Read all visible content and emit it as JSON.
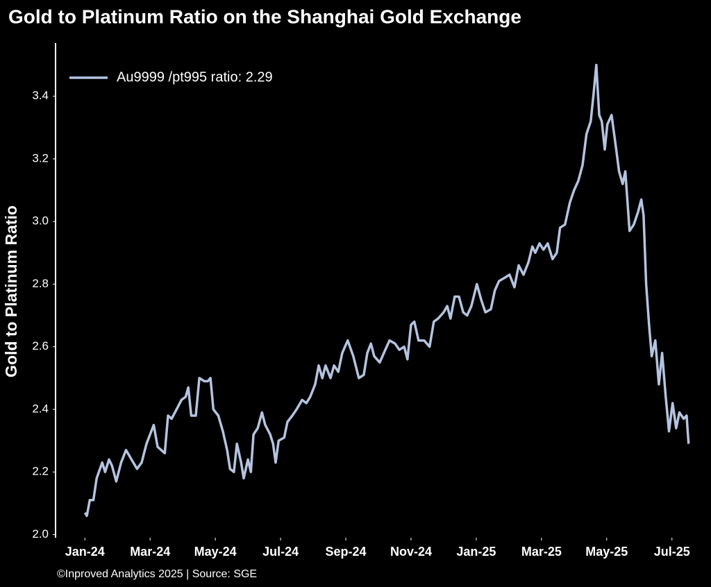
{
  "chart_data": {
    "type": "line",
    "title": "Gold to Platinum Ratio on the Shanghai Gold Exchange",
    "ylabel": "Gold to Platinum Ratio",
    "footer": "©Inproved Analytics 2025 | Source: SGE",
    "x": [
      0,
      0.06,
      0.15,
      0.26,
      0.36,
      0.53,
      0.62,
      0.74,
      0.83,
      0.96,
      1.11,
      1.26,
      1.43,
      1.6,
      1.74,
      1.89,
      2.11,
      2.23,
      2.34,
      2.45,
      2.55,
      2.66,
      2.81,
      2.96,
      3.09,
      3.17,
      3.26,
      3.4,
      3.51,
      3.66,
      3.77,
      3.85,
      3.94,
      4.09,
      4.23,
      4.36,
      4.45,
      4.57,
      4.66,
      4.79,
      4.87,
      5,
      5.09,
      5.17,
      5.3,
      5.43,
      5.53,
      5.68,
      5.77,
      5.85,
      5.94,
      6.11,
      6.21,
      6.36,
      6.49,
      6.66,
      6.79,
      6.91,
      7.06,
      7.17,
      7.28,
      7.38,
      7.53,
      7.64,
      7.77,
      7.89,
      8.06,
      8.23,
      8.4,
      8.55,
      8.66,
      8.77,
      8.87,
      9.04,
      9.21,
      9.34,
      9.51,
      9.64,
      9.79,
      9.89,
      10,
      10.1,
      10.23,
      10.4,
      10.57,
      10.7,
      10.83,
      11,
      11.11,
      11.21,
      11.34,
      11.47,
      11.6,
      11.72,
      11.85,
      12.02,
      12.15,
      12.28,
      12.45,
      12.57,
      12.7,
      12.87,
      13.02,
      13.17,
      13.3,
      13.45,
      13.6,
      13.72,
      13.81,
      13.94,
      14.06,
      14.19,
      14.34,
      14.47,
      14.57,
      14.72,
      14.87,
      15,
      15.13,
      15.26,
      15.38,
      15.51,
      15.6,
      15.68,
      15.77,
      15.85,
      15.94,
      16.02,
      16.15,
      16.28,
      16.38,
      16.49,
      16.57,
      16.7,
      16.83,
      16.96,
      17.06,
      17.13,
      17.21,
      17.3,
      17.38,
      17.49,
      17.6,
      17.7,
      17.81,
      17.91,
      18.02,
      18.13,
      18.23,
      18.36,
      18.45,
      18.51
    ],
    "series": [
      {
        "name": "Au9999 /pt995 ratio: 2.29",
        "color": "#b4c4e0",
        "values": [
          2.07,
          2.06,
          2.11,
          2.11,
          2.18,
          2.23,
          2.2,
          2.24,
          2.22,
          2.17,
          2.23,
          2.27,
          2.24,
          2.21,
          2.23,
          2.29,
          2.35,
          2.28,
          2.27,
          2.26,
          2.38,
          2.37,
          2.4,
          2.43,
          2.44,
          2.47,
          2.38,
          2.38,
          2.5,
          2.49,
          2.49,
          2.5,
          2.4,
          2.38,
          2.33,
          2.27,
          2.21,
          2.2,
          2.29,
          2.23,
          2.18,
          2.24,
          2.2,
          2.32,
          2.34,
          2.39,
          2.35,
          2.32,
          2.29,
          2.23,
          2.3,
          2.31,
          2.36,
          2.38,
          2.4,
          2.43,
          2.42,
          2.44,
          2.48,
          2.54,
          2.5,
          2.54,
          2.5,
          2.54,
          2.52,
          2.58,
          2.62,
          2.57,
          2.5,
          2.51,
          2.58,
          2.61,
          2.57,
          2.55,
          2.59,
          2.62,
          2.61,
          2.59,
          2.6,
          2.56,
          2.67,
          2.68,
          2.62,
          2.62,
          2.6,
          2.68,
          2.69,
          2.71,
          2.73,
          2.69,
          2.76,
          2.76,
          2.71,
          2.7,
          2.73,
          2.8,
          2.75,
          2.71,
          2.72,
          2.78,
          2.81,
          2.82,
          2.83,
          2.79,
          2.86,
          2.83,
          2.87,
          2.92,
          2.9,
          2.93,
          2.91,
          2.93,
          2.88,
          2.9,
          2.98,
          2.99,
          3.06,
          3.1,
          3.13,
          3.18,
          3.28,
          3.32,
          3.41,
          3.5,
          3.34,
          3.32,
          3.23,
          3.31,
          3.34,
          3.24,
          3.16,
          3.12,
          3.16,
          2.97,
          2.99,
          3.03,
          3.07,
          3.02,
          2.8,
          2.67,
          2.57,
          2.62,
          2.48,
          2.58,
          2.44,
          2.33,
          2.42,
          2.34,
          2.39,
          2.37,
          2.38,
          2.29
        ]
      }
    ],
    "xlim": [
      -0.9,
      18.9
    ],
    "xticks": [
      {
        "value": 0,
        "label": "Jan-24"
      },
      {
        "value": 2,
        "label": "Mar-24"
      },
      {
        "value": 4,
        "label": "May-24"
      },
      {
        "value": 6,
        "label": "Jul-24"
      },
      {
        "value": 8,
        "label": "Sep-24"
      },
      {
        "value": 10,
        "label": "Nov-24"
      },
      {
        "value": 12,
        "label": "Jan-25"
      },
      {
        "value": 14,
        "label": "Mar-25"
      },
      {
        "value": 16,
        "label": "May-25"
      },
      {
        "value": 18,
        "label": "Jul-25"
      }
    ],
    "ylim": [
      1.99,
      3.57
    ],
    "yticks": [
      {
        "value": 2,
        "label": "2.0"
      },
      2.2,
      2.4,
      2.6,
      2.8,
      {
        "value": 3,
        "label": "3.0"
      },
      3.2,
      3.4
    ],
    "legend": "upper left",
    "grid": false
  }
}
